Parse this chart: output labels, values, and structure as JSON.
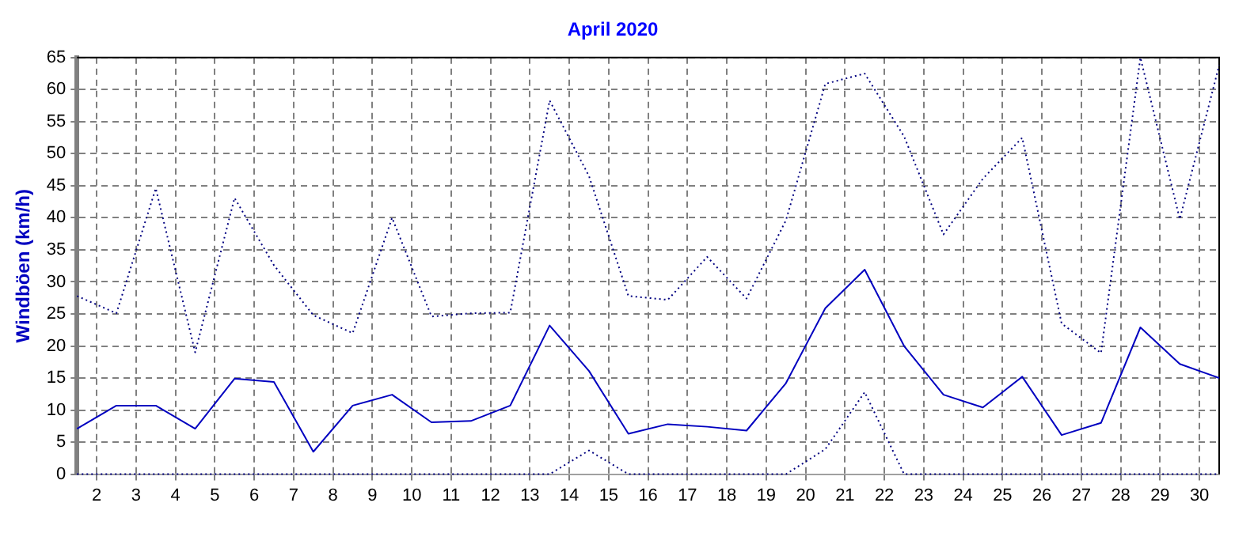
{
  "chart_data": {
    "type": "line",
    "title": "April 2020",
    "ylabel": "Windböen (km/h)",
    "x": [
      1.5,
      2.5,
      3.5,
      4.5,
      5.5,
      6.5,
      7.5,
      8.5,
      9.5,
      10.5,
      11.5,
      12.5,
      13.5,
      14.5,
      15.5,
      16.5,
      17.5,
      18.5,
      19.5,
      20.5,
      21.5,
      22.5,
      23.5,
      24.5,
      25.5,
      26.5,
      27.5,
      28.5,
      29.5,
      30.5
    ],
    "series": [
      {
        "color": "#000080",
        "line_style": "dotted",
        "values": [
          27.8,
          25.1,
          44.6,
          19.0,
          43.1,
          32.6,
          24.8,
          22.0,
          40.0,
          24.6,
          25.1,
          25.2,
          58.3,
          46.5,
          27.8,
          27.2,
          33.9,
          27.4,
          39.6,
          60.9,
          62.5,
          52.7,
          37.4,
          46.1,
          52.5,
          23.5,
          18.9,
          65.0,
          39.8,
          63.8
        ]
      },
      {
        "color": "#0000c0",
        "line_style": "solid",
        "values": [
          7.1,
          10.7,
          10.7,
          7.1,
          14.9,
          14.4,
          3.5,
          10.7,
          12.4,
          8.1,
          8.3,
          10.7,
          23.2,
          16.1,
          6.3,
          7.8,
          7.4,
          6.8,
          14.2,
          25.9,
          31.9,
          20.0,
          12.4,
          10.4,
          15.2,
          6.1,
          8.0,
          22.9,
          17.2,
          15.0
        ]
      },
      {
        "color": "#000080",
        "line_style": "dotted",
        "values": [
          0,
          0,
          0,
          0,
          0,
          0,
          0,
          0,
          0,
          0,
          0,
          0,
          0,
          3.7,
          0,
          0,
          0,
          0,
          0,
          3.9,
          12.8,
          0,
          0,
          0,
          0,
          0,
          0,
          0,
          0,
          0
        ]
      }
    ],
    "xlim": [
      1.5,
      30.5
    ],
    "xticks": [
      2,
      3,
      4,
      5,
      6,
      7,
      8,
      9,
      10,
      11,
      12,
      13,
      14,
      15,
      16,
      17,
      18,
      19,
      20,
      21,
      22,
      23,
      24,
      25,
      26,
      27,
      28,
      29,
      30
    ],
    "ylim": [
      0,
      65
    ],
    "yticks": [
      0,
      5,
      10,
      15,
      20,
      25,
      30,
      35,
      40,
      45,
      50,
      55,
      60,
      65
    ],
    "grid": true,
    "legend": false,
    "marker": "none"
  }
}
